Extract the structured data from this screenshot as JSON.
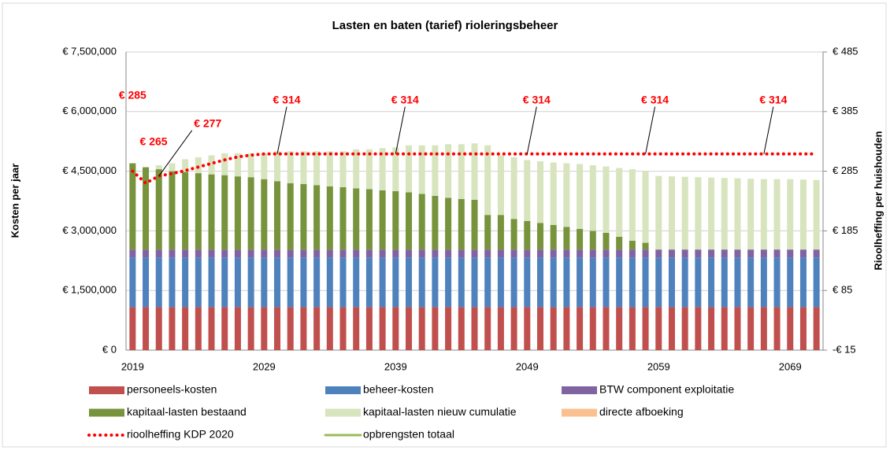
{
  "chart_data": {
    "type": "bar",
    "title": "Lasten en baten (tarief) rioleringsbeheer",
    "ylabel": "Kosten per jaar",
    "y2label": "Rioolheffing per huishouden",
    "categories": [
      "2019",
      null,
      null,
      null,
      null,
      null,
      null,
      null,
      null,
      null,
      "2029",
      null,
      null,
      null,
      null,
      null,
      null,
      null,
      null,
      null,
      "2039",
      null,
      null,
      null,
      null,
      null,
      null,
      null,
      null,
      null,
      "2049",
      null,
      null,
      null,
      null,
      null,
      null,
      null,
      null,
      null,
      "2059",
      null,
      null,
      null,
      null,
      null,
      null,
      null,
      null,
      null,
      "2069",
      null,
      null
    ],
    "ylim": [
      0,
      7500000
    ],
    "yticks": [
      {
        "value": 0,
        "label": "€ 0"
      },
      {
        "value": 1500000,
        "label": "€ 1,500,000"
      },
      {
        "value": 3000000,
        "label": "€ 3,000,000"
      },
      {
        "value": 4500000,
        "label": "€ 4,500,000"
      },
      {
        "value": 6000000,
        "label": "€ 6,000,000"
      },
      {
        "value": 7500000,
        "label": "€ 7,500,000"
      }
    ],
    "y2lim": [
      -15,
      485
    ],
    "y2ticks": [
      {
        "value": -15,
        "label": "-€ 15"
      },
      {
        "value": 85,
        "label": "€ 85"
      },
      {
        "value": 185,
        "label": "€ 185"
      },
      {
        "value": 285,
        "label": "€ 285"
      },
      {
        "value": 385,
        "label": "€ 385"
      },
      {
        "value": 485,
        "label": "€ 485"
      }
    ],
    "grid": true,
    "stacked": true,
    "series": [
      {
        "name": "personeels-kosten",
        "color": "#c0504d",
        "values": [
          1080000,
          1080000,
          1080000,
          1080000,
          1080000,
          1080000,
          1080000,
          1080000,
          1080000,
          1080000,
          1080000,
          1080000,
          1080000,
          1080000,
          1080000,
          1080000,
          1080000,
          1080000,
          1080000,
          1080000,
          1080000,
          1080000,
          1080000,
          1080000,
          1080000,
          1080000,
          1080000,
          1080000,
          1080000,
          1080000,
          1080000,
          1080000,
          1080000,
          1080000,
          1080000,
          1080000,
          1080000,
          1080000,
          1080000,
          1080000,
          1080000,
          1080000,
          1080000,
          1080000,
          1080000,
          1080000,
          1080000,
          1080000,
          1080000,
          1080000,
          1080000,
          1080000,
          1080000
        ]
      },
      {
        "name": "beheer-kosten",
        "color": "#4f81bd",
        "values": [
          1250000,
          1250000,
          1250000,
          1250000,
          1250000,
          1250000,
          1250000,
          1250000,
          1250000,
          1250000,
          1250000,
          1250000,
          1250000,
          1250000,
          1250000,
          1250000,
          1250000,
          1250000,
          1250000,
          1250000,
          1250000,
          1250000,
          1250000,
          1250000,
          1250000,
          1250000,
          1250000,
          1250000,
          1250000,
          1250000,
          1250000,
          1250000,
          1250000,
          1250000,
          1250000,
          1250000,
          1250000,
          1250000,
          1250000,
          1250000,
          1250000,
          1250000,
          1250000,
          1250000,
          1250000,
          1250000,
          1250000,
          1250000,
          1250000,
          1250000,
          1250000,
          1250000,
          1250000
        ]
      },
      {
        "name": "BTW component exploitatie",
        "color": "#8064a2",
        "values": [
          200000,
          200000,
          200000,
          200000,
          200000,
          200000,
          200000,
          200000,
          200000,
          200000,
          200000,
          200000,
          200000,
          200000,
          200000,
          200000,
          200000,
          200000,
          200000,
          200000,
          200000,
          200000,
          200000,
          200000,
          200000,
          200000,
          200000,
          200000,
          200000,
          200000,
          200000,
          200000,
          200000,
          200000,
          200000,
          200000,
          200000,
          200000,
          200000,
          200000,
          200000,
          200000,
          200000,
          200000,
          200000,
          200000,
          200000,
          200000,
          200000,
          200000,
          200000,
          200000,
          200000
        ]
      },
      {
        "name": "kapitaal-lasten bestaand",
        "color": "#77933c",
        "values": [
          2170000,
          2070000,
          2020000,
          1970000,
          1950000,
          1920000,
          1890000,
          1870000,
          1840000,
          1820000,
          1770000,
          1720000,
          1670000,
          1650000,
          1620000,
          1590000,
          1570000,
          1540000,
          1520000,
          1490000,
          1470000,
          1440000,
          1400000,
          1350000,
          1300000,
          1270000,
          1250000,
          870000,
          870000,
          770000,
          720000,
          670000,
          620000,
          570000,
          520000,
          470000,
          420000,
          320000,
          220000,
          170000,
          0,
          0,
          0,
          0,
          0,
          0,
          0,
          0,
          0,
          0,
          0,
          0,
          0
        ]
      },
      {
        "name": "kapitaal-lasten nieuw cumulatie",
        "color": "#d7e4bd",
        "values": [
          0,
          0,
          100000,
          200000,
          320000,
          400000,
          480000,
          550000,
          580000,
          600000,
          650000,
          750000,
          800000,
          820000,
          850000,
          880000,
          900000,
          980000,
          1000000,
          1060000,
          1100000,
          1180000,
          1220000,
          1270000,
          1350000,
          1380000,
          1420000,
          1750000,
          1500000,
          1550000,
          1530000,
          1550000,
          1570000,
          1600000,
          1630000,
          1650000,
          1670000,
          1730000,
          1800000,
          1800000,
          1850000,
          1840000,
          1830000,
          1820000,
          1810000,
          1800000,
          1790000,
          1780000,
          1770000,
          1770000,
          1770000,
          1760000,
          1750000
        ]
      },
      {
        "name": "directe afboeking",
        "color": "#fac090"
      },
      {
        "name": "rioolheffing  KDP 2020",
        "color": "#ff0000",
        "type": "line",
        "axis": "y2",
        "dotted": true,
        "values": [
          285,
          265,
          277,
          281,
          286,
          292,
          298,
          304,
          309,
          312,
          314,
          314,
          314,
          314,
          314,
          314,
          314,
          314,
          314,
          314,
          314,
          314,
          314,
          314,
          314,
          314,
          314,
          314,
          314,
          314,
          314,
          314,
          314,
          314,
          314,
          314,
          314,
          314,
          314,
          314,
          314,
          314,
          314,
          314,
          314,
          314,
          314,
          314,
          314,
          314,
          314,
          314,
          314
        ],
        "value_labels": [
          "€ 285",
          "€ 265",
          "€ 277",
          null,
          null,
          null,
          null,
          null,
          null,
          null,
          null,
          "€ 314",
          null,
          null,
          null,
          null,
          null,
          null,
          null,
          null,
          "€ 314",
          null,
          null,
          null,
          null,
          null,
          null,
          null,
          null,
          null,
          "€ 314",
          null,
          null,
          null,
          null,
          null,
          null,
          null,
          null,
          "€ 314",
          null,
          null,
          null,
          null,
          null,
          null,
          null,
          null,
          "€ 314",
          null,
          null,
          null,
          null
        ]
      },
      {
        "name": "opbrengsten totaal",
        "color": "#9bbb59",
        "type": "line"
      }
    ]
  }
}
